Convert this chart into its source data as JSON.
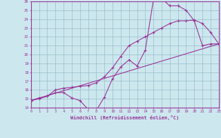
{
  "xlabel": "Windchill (Refroidissement éolien,°C)",
  "bg_color": "#cce8ee",
  "line_color": "#993399",
  "grid_color": "#99bbcc",
  "xmin": 0,
  "xmax": 23,
  "ymin": 14,
  "ymax": 26,
  "line1_x": [
    0,
    1,
    2,
    3,
    4,
    5,
    6,
    7,
    8,
    9,
    10,
    11,
    12,
    13,
    14,
    15,
    16,
    17,
    18,
    19,
    20,
    21,
    22,
    23
  ],
  "line1_y": [
    14.8,
    15.1,
    15.3,
    15.7,
    15.7,
    15.1,
    14.8,
    13.8,
    13.7,
    15.2,
    17.3,
    18.6,
    19.4,
    18.7,
    20.5,
    26.2,
    26.3,
    25.5,
    25.5,
    25.0,
    23.8,
    21.0,
    21.2,
    21.2
  ],
  "line2_x": [
    0,
    1,
    2,
    3,
    4,
    5,
    6,
    7,
    8,
    9,
    10,
    11,
    12,
    13,
    14,
    15,
    16,
    17,
    18,
    19,
    20,
    21,
    22,
    23
  ],
  "line2_y": [
    14.8,
    15.0,
    15.3,
    16.0,
    16.2,
    16.3,
    16.4,
    16.5,
    16.8,
    17.5,
    18.5,
    19.8,
    21.0,
    21.5,
    22.0,
    22.5,
    23.0,
    23.5,
    23.8,
    23.8,
    23.9,
    23.5,
    22.5,
    21.2
  ],
  "line3_x": [
    0,
    23
  ],
  "line3_y": [
    14.8,
    21.2
  ]
}
